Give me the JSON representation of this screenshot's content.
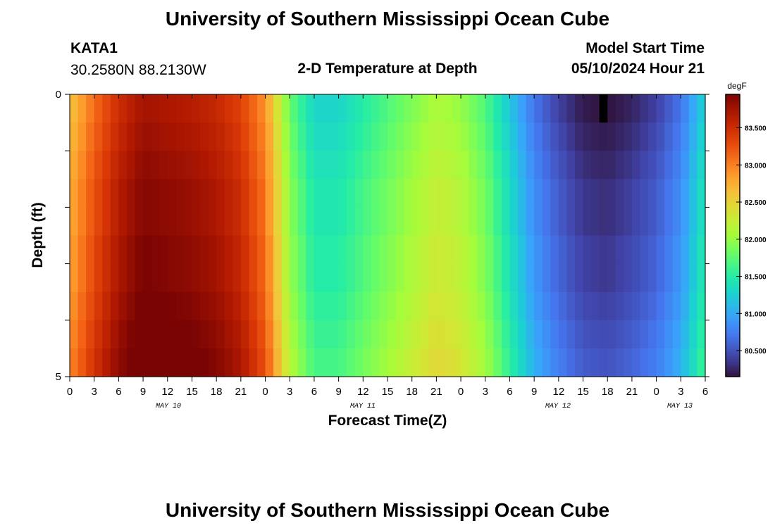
{
  "header": {
    "title": "University of Southern Mississippi Ocean Cube",
    "station_id": "KATA1",
    "coordinates": "30.2580N  88.2130W",
    "plot_subtitle": "2-D Temperature at Depth",
    "model_start_label": "Model Start Time",
    "model_start_value": "05/10/2024 Hour 21"
  },
  "footer": {
    "title": "University of Southern Mississippi Ocean Cube"
  },
  "colors": {
    "colormap": [
      "#30123b",
      "#4145ab",
      "#4675ed",
      "#39a2fc",
      "#1bcfd4",
      "#24eca6",
      "#61fc6c",
      "#a4fc3b",
      "#d1e834",
      "#f3c63a",
      "#fe9b2d",
      "#f36315",
      "#d93806",
      "#b11901",
      "#7a0403"
    ],
    "missing": "#000000"
  },
  "chart_data": {
    "type": "heatmap",
    "title": "2-D Temperature at Depth",
    "xlabel": "Forecast Time(Z)",
    "ylabel": "Depth (ft)",
    "ylim": [
      0,
      5
    ],
    "y_ticks": [
      "0",
      "5"
    ],
    "x_tick_labels": [
      "0",
      "3",
      "6",
      "9",
      "12",
      "15",
      "18",
      "21",
      "0",
      "3",
      "6",
      "9",
      "12",
      "15",
      "18",
      "21",
      "0",
      "3",
      "6",
      "9",
      "12",
      "15",
      "18",
      "21",
      "0",
      "3",
      "6"
    ],
    "x_day_labels": [
      "MAY 10",
      "MAY 11",
      "MAY 12",
      "MAY 13"
    ],
    "colorbar": {
      "unit": "degF",
      "range": [
        80.15,
        83.95
      ],
      "ticks": [
        "80.500",
        "81.000",
        "81.500",
        "82.000",
        "82.500",
        "83.000",
        "83.500"
      ]
    },
    "missing_cell": {
      "hour": 65,
      "depth_row": 0
    },
    "time_hours": 78,
    "depth_rows": 10,
    "time_profile": {
      "hours": [
        0,
        3,
        6,
        9,
        12,
        15,
        18,
        21,
        24,
        27,
        30,
        33,
        36,
        39,
        42,
        45,
        48,
        51,
        54,
        57,
        60,
        63,
        66,
        69,
        72,
        75,
        78
      ],
      "degF": [
        82.7,
        83.2,
        83.6,
        83.85,
        83.8,
        83.75,
        83.65,
        83.45,
        83.0,
        81.9,
        81.4,
        81.4,
        81.6,
        81.8,
        82.0,
        82.2,
        82.1,
        81.8,
        81.3,
        80.8,
        80.5,
        80.3,
        80.25,
        80.35,
        80.5,
        80.8,
        81.4
      ]
    },
    "depth_offsets_degF": [
      -0.1,
      -0.05,
      0,
      0.05,
      0.05,
      0.1,
      0.1,
      0.15,
      0.2,
      0.25
    ]
  }
}
